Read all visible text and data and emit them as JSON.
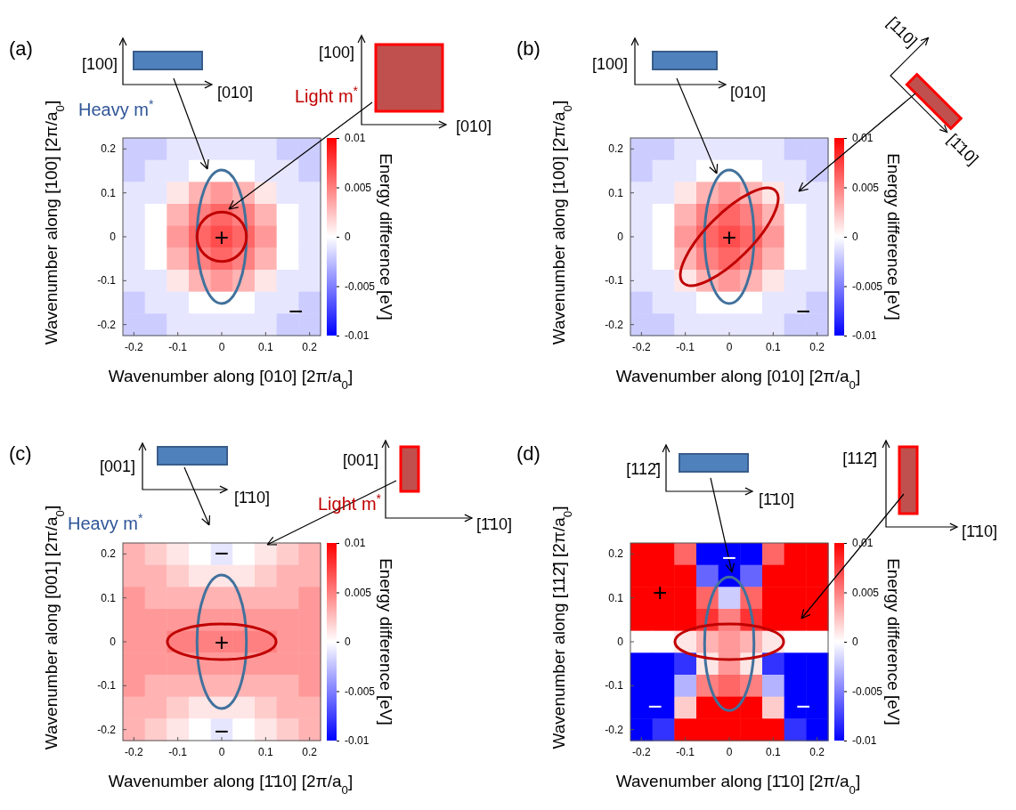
{
  "chart_data": [
    {
      "type": "heatmap",
      "xlabel": "Wavenumber along [010] [2π/a$_{0}$]",
      "ylabel": "Wavenumber along [100] [2π/a$_{0}$]",
      "clabel": "Energy difference [eV]",
      "categories": [
        "-0.2",
        null,
        "-0.1",
        null,
        "0",
        null,
        "0.1",
        null,
        "0.2"
      ],
      "y_categories": [
        "0.2",
        null,
        "0.1",
        null,
        "0",
        null,
        "-0.1",
        null,
        "-0.2"
      ],
      "cells": [
        [
          -0.002,
          -0.002,
          -0.001,
          -0.001,
          -0.001,
          -0.001,
          -0.001,
          -0.002,
          -0.002
        ],
        [
          -0.002,
          -0.001,
          -0.001,
          0,
          0,
          0,
          -0.001,
          -0.001,
          -0.002
        ],
        [
          -0.001,
          -0.001,
          0.001,
          0.003,
          0.004,
          0.003,
          0.001,
          -0.001,
          -0.001
        ],
        [
          -0.001,
          0,
          0.003,
          0.005,
          0.006,
          0.005,
          0.003,
          0,
          -0.001
        ],
        [
          -0.001,
          0,
          0.004,
          0.006,
          0.007,
          0.006,
          0.004,
          0,
          -0.001
        ],
        [
          -0.001,
          0,
          0.003,
          0.005,
          0.006,
          0.005,
          0.003,
          0,
          -0.001
        ],
        [
          -0.001,
          -0.001,
          0.001,
          0.003,
          0.004,
          0.003,
          0.001,
          -0.001,
          -0.001
        ],
        [
          -0.002,
          -0.001,
          -0.001,
          0,
          0,
          0,
          -0.001,
          -0.001,
          -0.002
        ],
        [
          -0.002,
          -0.002,
          -0.001,
          -0.001,
          -0.001,
          -0.001,
          -0.001,
          -0.002,
          -0.002
        ]
      ],
      "clim": [
        -0.01,
        0.01
      ],
      "cticks": [
        -0.01,
        -0.005,
        0,
        0.005,
        0.01
      ],
      "annotations": [
        "(a)",
        "[100]",
        "[010]",
        "Heavy m$^{*}$",
        "[100]",
        "[010]",
        "Light m$^{*}$",
        "+",
        "−"
      ]
    },
    {
      "type": "heatmap",
      "xlabel": "Wavenumber along [010] [2π/a$_{0}$]",
      "ylabel": "Wavenumber along [100] [2π/a$_{0}$]",
      "clabel": "Energy difference [eV]",
      "categories": [
        "-0.2",
        null,
        "-0.1",
        null,
        "0",
        null,
        "0.1",
        null,
        "0.2"
      ],
      "y_categories": [
        "0.2",
        null,
        "0.1",
        null,
        "0",
        null,
        "-0.1",
        null,
        "-0.2"
      ],
      "cells": [
        [
          -0.002,
          -0.002,
          -0.001,
          -0.001,
          -0.001,
          -0.001,
          -0.001,
          -0.002,
          -0.002
        ],
        [
          -0.002,
          -0.001,
          -0.001,
          0,
          0,
          0,
          -0.001,
          -0.001,
          -0.002
        ],
        [
          -0.001,
          -0.001,
          0.001,
          0.003,
          0.004,
          0.003,
          0.001,
          -0.001,
          -0.001
        ],
        [
          -0.001,
          0,
          0.003,
          0.005,
          0.006,
          0.005,
          0.003,
          0,
          -0.001
        ],
        [
          -0.001,
          0,
          0.004,
          0.006,
          0.007,
          0.006,
          0.004,
          0,
          -0.001
        ],
        [
          -0.001,
          0,
          0.003,
          0.005,
          0.006,
          0.005,
          0.003,
          0,
          -0.001
        ],
        [
          -0.001,
          -0.001,
          0.001,
          0.003,
          0.004,
          0.003,
          0.001,
          -0.001,
          -0.001
        ],
        [
          -0.002,
          -0.001,
          -0.001,
          0,
          0,
          0,
          -0.001,
          -0.001,
          -0.002
        ],
        [
          -0.002,
          -0.002,
          -0.001,
          -0.001,
          -0.001,
          -0.001,
          -0.001,
          -0.002,
          -0.002
        ]
      ],
      "clim": [
        -0.01,
        0.01
      ],
      "cticks": [
        -0.01,
        -0.005,
        0,
        0.005,
        0.01
      ],
      "annotations": [
        "(b)",
        "[100]",
        "[010]",
        "[110]",
        "[1̄10]",
        "+",
        "−"
      ]
    },
    {
      "type": "heatmap",
      "xlabel": "Wavenumber along [1̄10] [2π/a$_{0}$]",
      "ylabel": "Wavenumber along [001] [2π/a$_{0}$]",
      "clabel": "Energy difference [eV]",
      "categories": [
        "-0.2",
        null,
        "-0.1",
        null,
        "0",
        null,
        "0.1",
        null,
        "0.2"
      ],
      "y_categories": [
        "0.2",
        null,
        "0.1",
        null,
        "0",
        null,
        "-0.1",
        null,
        "-0.2"
      ],
      "cells": [
        [
          0.003,
          0.002,
          0.001,
          0,
          -0.001,
          0,
          0.001,
          0.002,
          0.003
        ],
        [
          0.003,
          0.003,
          0.002,
          0.001,
          0.001,
          0.001,
          0.002,
          0.003,
          0.003
        ],
        [
          0.004,
          0.003,
          0.003,
          0.003,
          0.003,
          0.003,
          0.003,
          0.003,
          0.004
        ],
        [
          0.004,
          0.004,
          0.004,
          0.004,
          0.004,
          0.004,
          0.004,
          0.004,
          0.004
        ],
        [
          0.004,
          0.004,
          0.005,
          0.005,
          0.005,
          0.005,
          0.005,
          0.004,
          0.004
        ],
        [
          0.004,
          0.004,
          0.004,
          0.004,
          0.004,
          0.004,
          0.004,
          0.004,
          0.004
        ],
        [
          0.004,
          0.003,
          0.003,
          0.003,
          0.003,
          0.003,
          0.003,
          0.003,
          0.004
        ],
        [
          0.003,
          0.003,
          0.002,
          0.001,
          0.001,
          0.001,
          0.002,
          0.003,
          0.003
        ],
        [
          0.003,
          0.002,
          0.001,
          0,
          -0.001,
          0,
          0.001,
          0.002,
          0.003
        ]
      ],
      "clim": [
        -0.01,
        0.01
      ],
      "cticks": [
        -0.01,
        -0.005,
        0,
        0.005,
        0.01
      ],
      "annotations": [
        "(c)",
        "[001]",
        "[1̄10]",
        "Heavy m$^{*}$",
        "[001]",
        "[1̄10]",
        "Light m$^{*}$",
        "+",
        "−",
        "−"
      ]
    },
    {
      "type": "heatmap",
      "xlabel": "Wavenumber along [1̄10] [2π/a$_{0}$]",
      "ylabel": "Wavenumber along [112̄] [2π/a$_{0}$]",
      "clabel": "Energy difference [eV]",
      "categories": [
        "-0.2",
        null,
        "-0.1",
        null,
        "0",
        null,
        "0.1",
        null,
        "0.2"
      ],
      "y_categories": [
        "0.2",
        null,
        "0.1",
        null,
        "0",
        null,
        "-0.1",
        null,
        "-0.2"
      ],
      "cells": [
        [
          0.01,
          0.01,
          0.006,
          -0.01,
          -0.01,
          -0.01,
          0.006,
          0.01,
          0.01
        ],
        [
          0.01,
          0.01,
          0.01,
          -0.006,
          -0.01,
          -0.006,
          0.01,
          0.01,
          0.01
        ],
        [
          0.01,
          0.01,
          0.01,
          0.006,
          -0.002,
          0.006,
          0.01,
          0.01,
          0.01
        ],
        [
          0.01,
          0.01,
          0.01,
          0.008,
          0.005,
          0.008,
          0.01,
          0.01,
          0.01
        ],
        [
          0,
          0,
          0.001,
          0.003,
          0.004,
          0.003,
          0.001,
          0,
          0
        ],
        [
          -0.01,
          -0.01,
          -0.008,
          0.001,
          0.004,
          0.001,
          -0.008,
          -0.01,
          -0.01
        ],
        [
          -0.01,
          -0.01,
          -0.003,
          0.005,
          0.006,
          0.005,
          -0.003,
          -0.01,
          -0.01
        ],
        [
          -0.01,
          -0.01,
          0.002,
          0.01,
          0.01,
          0.01,
          0.002,
          -0.01,
          -0.01
        ],
        [
          -0.01,
          -0.008,
          0.01,
          0.01,
          0.01,
          0.01,
          0.01,
          -0.008,
          -0.01
        ]
      ],
      "clim": [
        -0.01,
        0.01
      ],
      "cticks": [
        -0.01,
        -0.005,
        0,
        0.005,
        0.01
      ],
      "annotations": [
        "(d)",
        "[112̄]",
        "[1̄10]",
        "[112̄]",
        "[1̄10]",
        "+",
        "−",
        "−",
        "−"
      ]
    }
  ]
}
